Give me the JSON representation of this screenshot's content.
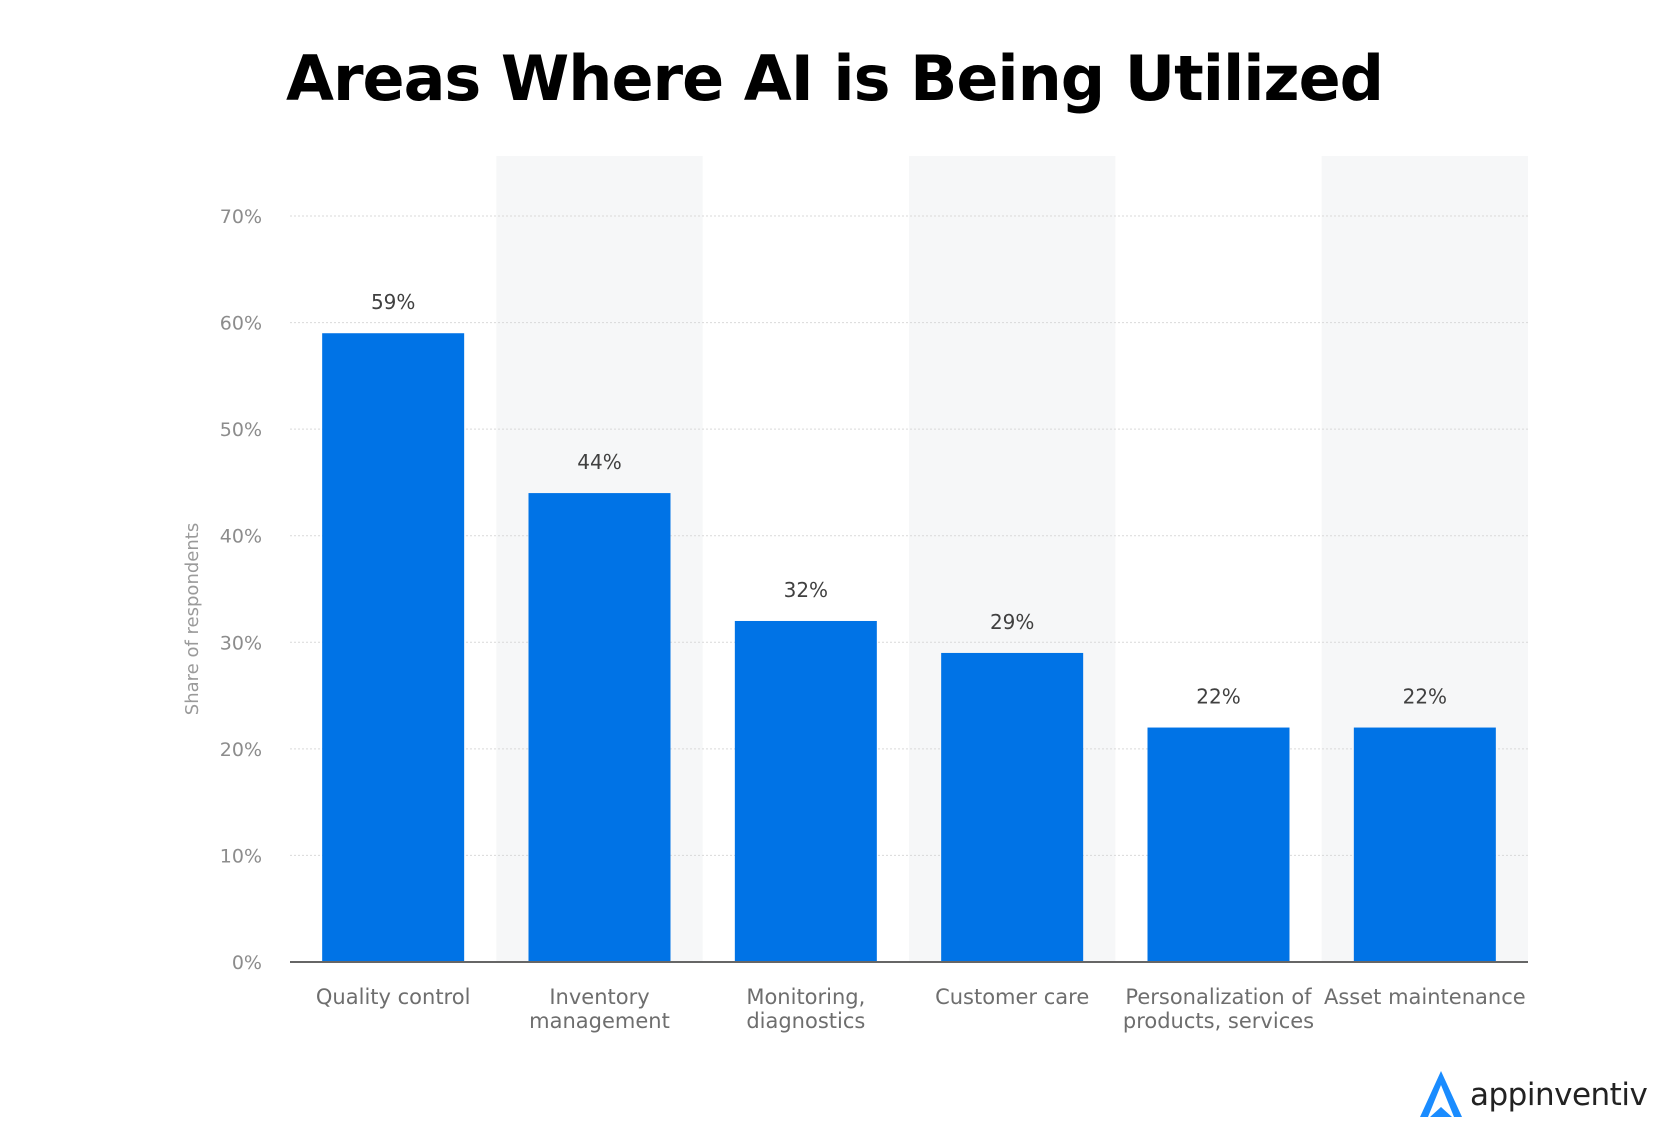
{
  "header": {
    "title": "Areas Where AI is Being Utilized"
  },
  "chart_data": {
    "type": "bar",
    "categories": [
      [
        "Quality control"
      ],
      [
        "Inventory",
        "management"
      ],
      [
        "Monitoring,",
        "diagnostics"
      ],
      [
        "Customer care"
      ],
      [
        "Personalization of",
        "products, services"
      ],
      [
        "Asset maintenance"
      ]
    ],
    "values": [
      59,
      44,
      32,
      29,
      22,
      22
    ],
    "value_labels": [
      "59%",
      "44%",
      "32%",
      "29%",
      "22%",
      "22%"
    ],
    "ylabel": "Share of respondents",
    "xlabel": "",
    "ylim": [
      0,
      70
    ],
    "yticks": [
      0,
      10,
      20,
      30,
      40,
      50,
      60,
      70
    ],
    "ytick_labels": [
      "0%",
      "10%",
      "20%",
      "30%",
      "40%",
      "50%",
      "60%",
      "70%"
    ],
    "grid": true,
    "bar_color": "#0073e6",
    "band_color": "#f6f7f8"
  },
  "brand": {
    "name": "appinventiv",
    "icon": "appinventiv-logo-icon",
    "color": "#1a8cff"
  }
}
